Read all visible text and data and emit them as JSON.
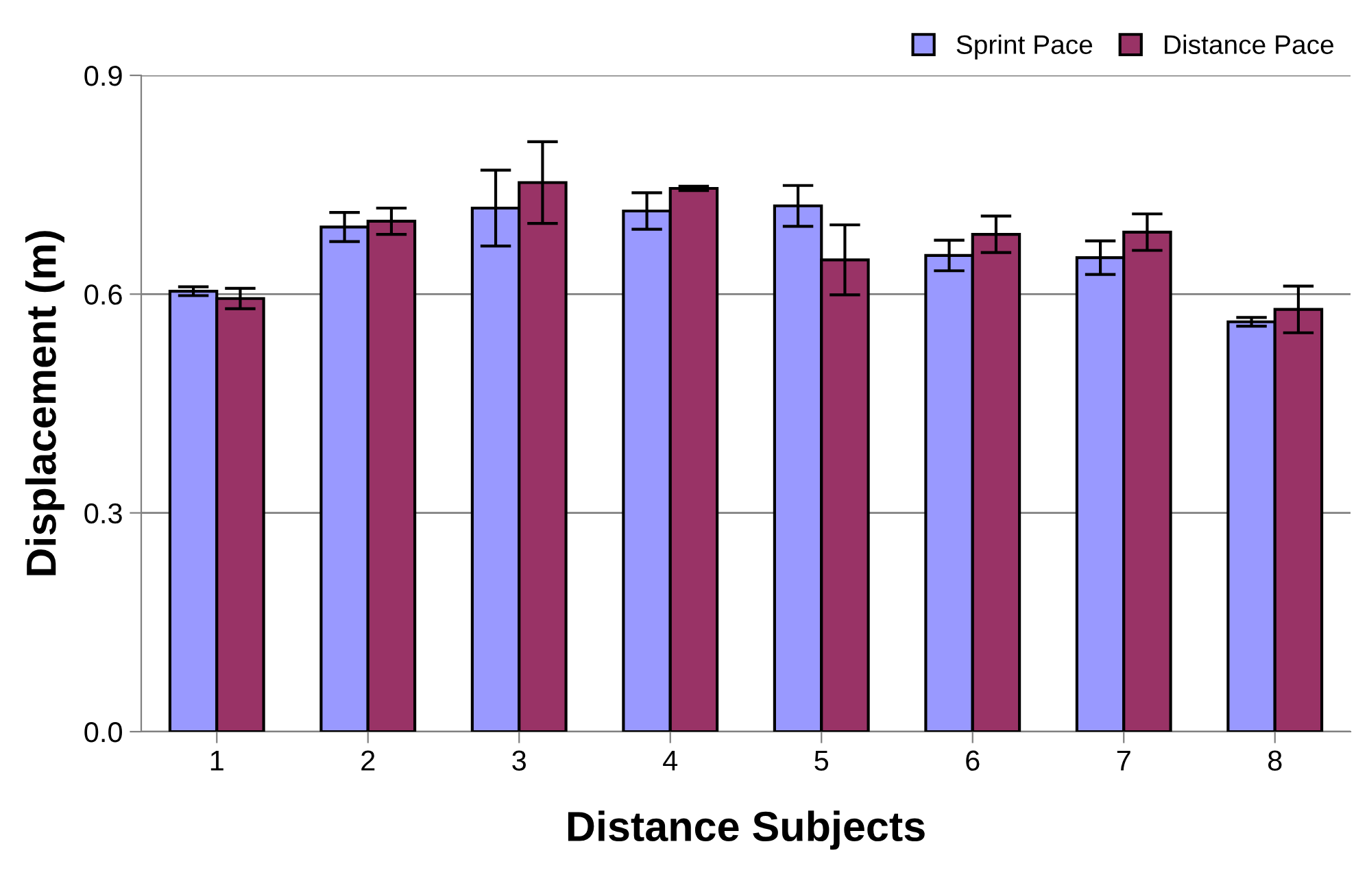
{
  "chart_data": {
    "type": "bar",
    "xlabel": "Distance Subjects",
    "ylabel": "Displacement (m)",
    "categories": [
      "1",
      "2",
      "3",
      "4",
      "5",
      "6",
      "7",
      "8"
    ],
    "series": [
      {
        "name": "Sprint Pace",
        "color": "#9999ff",
        "values": [
          0.604,
          0.692,
          0.718,
          0.714,
          0.721,
          0.653,
          0.65,
          0.562
        ],
        "errors": [
          0.006,
          0.02,
          0.052,
          0.025,
          0.028,
          0.021,
          0.023,
          0.006
        ]
      },
      {
        "name": "Distance Pace",
        "color": "#993366",
        "values": [
          0.594,
          0.7,
          0.753,
          0.745,
          0.647,
          0.682,
          0.685,
          0.579
        ],
        "errors": [
          0.014,
          0.018,
          0.056,
          0.003,
          0.048,
          0.025,
          0.025,
          0.032
        ]
      }
    ],
    "ylim": [
      0,
      0.9
    ],
    "yticks": [
      {
        "value": 0,
        "label": "0.0"
      },
      0.3,
      0.6,
      0.9
    ],
    "grid": "y",
    "legend": "top right"
  }
}
